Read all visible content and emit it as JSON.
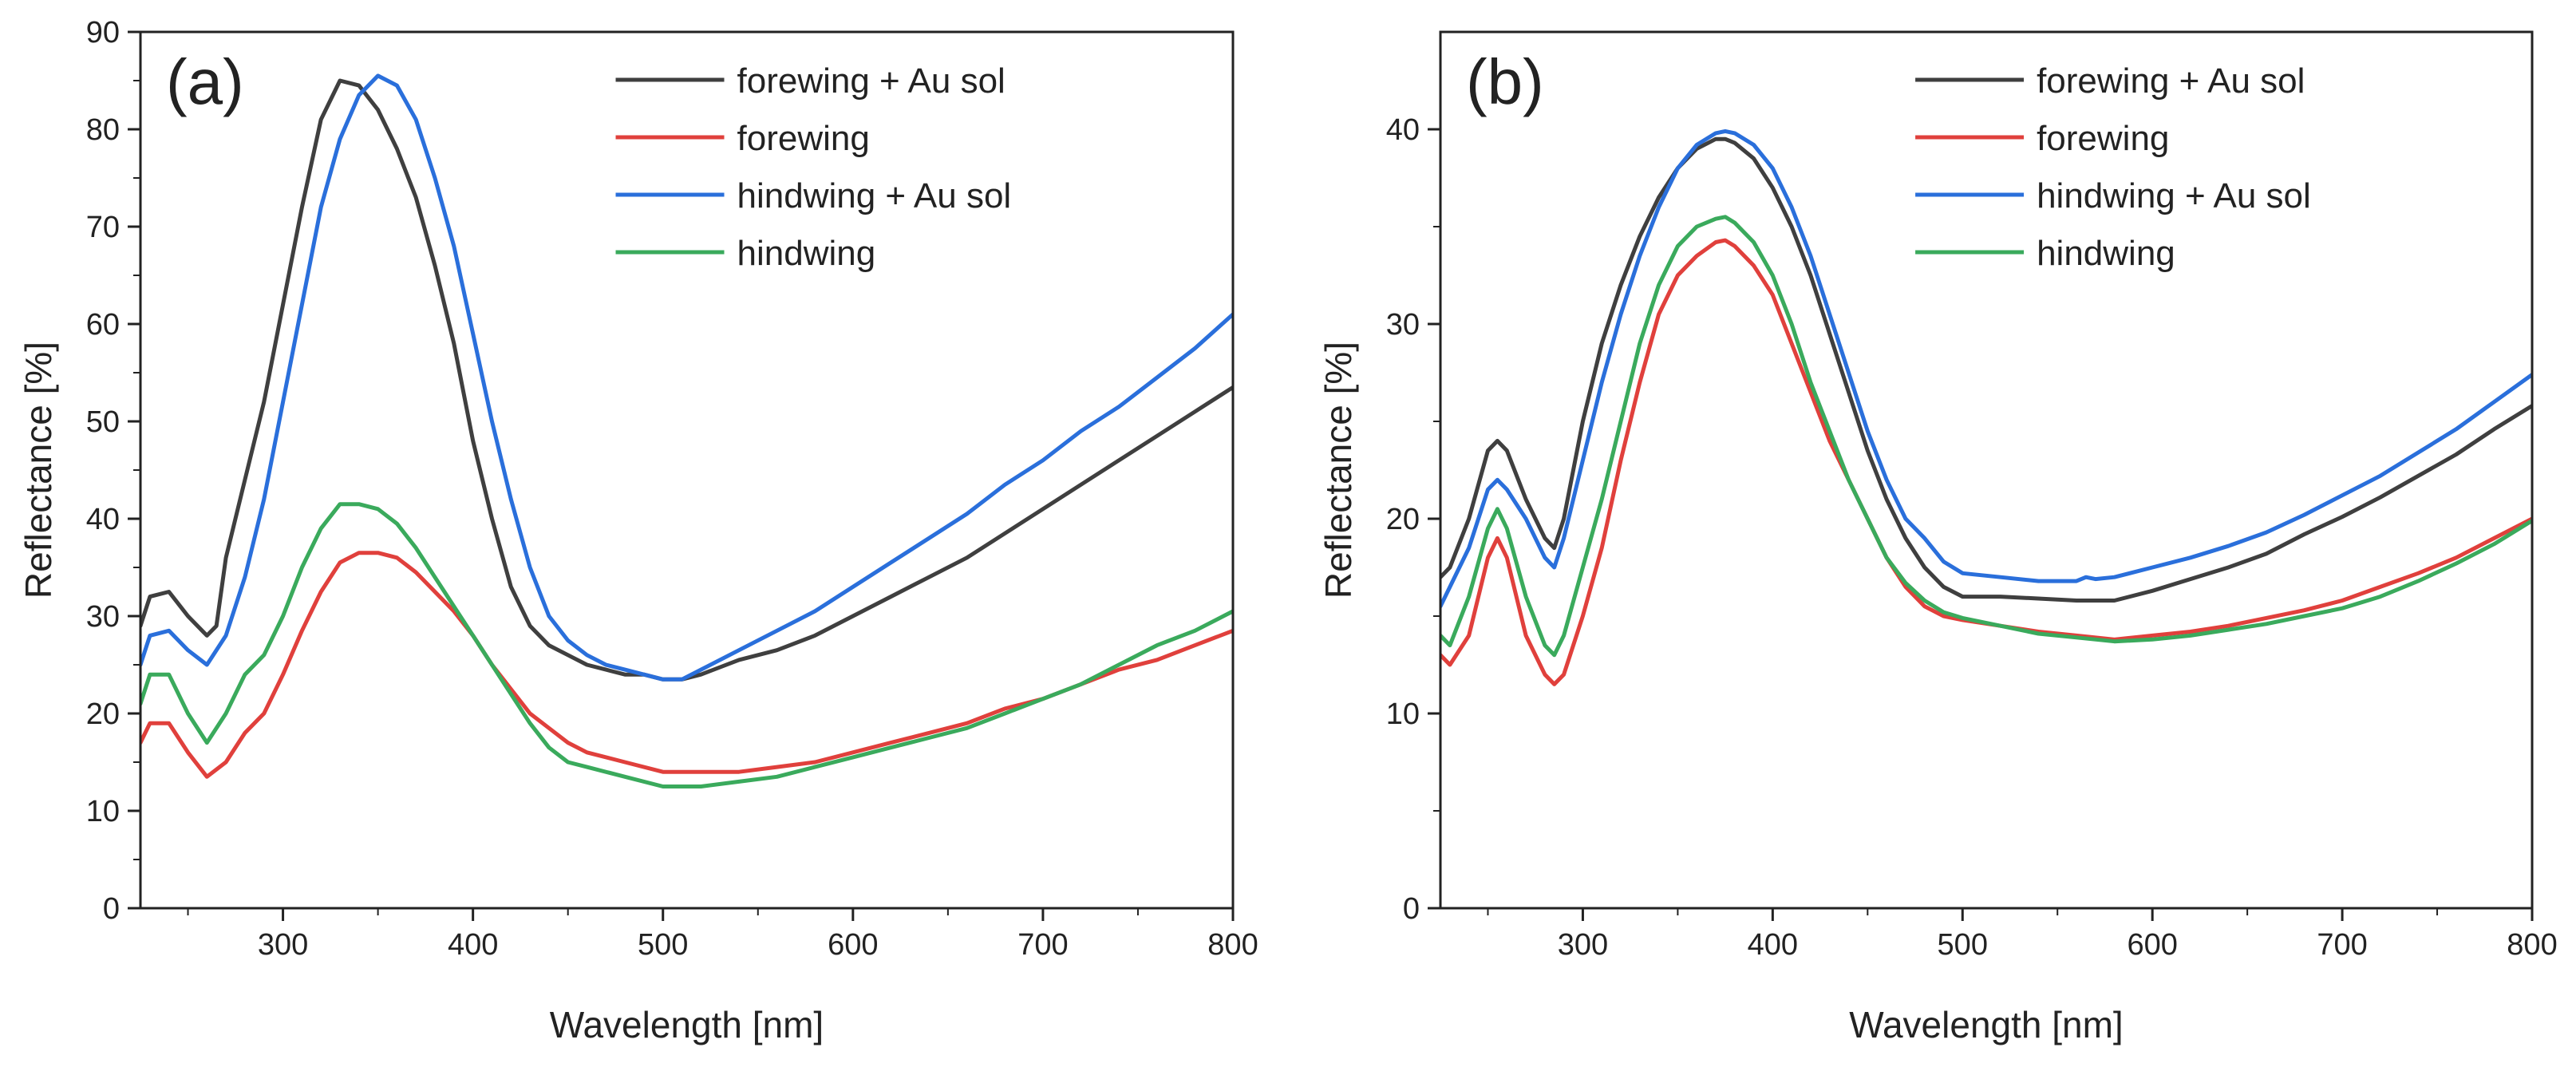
{
  "chart_data": [
    {
      "panel_label": "(a)",
      "type": "line",
      "xlabel": "Wavelength [nm]",
      "ylabel": "Reflectance [%]",
      "xlim": [
        225,
        800
      ],
      "ylim": [
        0,
        90
      ],
      "xticks": [
        300,
        400,
        500,
        600,
        700,
        800
      ],
      "yticks": [
        0,
        10,
        20,
        30,
        40,
        50,
        60,
        70,
        80,
        90
      ],
      "grid": false,
      "legend_position": "top-right",
      "series": [
        {
          "name": "forewing + Au sol",
          "color": "#3f3f3f",
          "x": [
            225,
            230,
            240,
            250,
            260,
            265,
            270,
            280,
            290,
            300,
            310,
            320,
            330,
            340,
            350,
            360,
            370,
            380,
            390,
            400,
            410,
            420,
            430,
            440,
            450,
            460,
            470,
            480,
            490,
            500,
            510,
            520,
            540,
            560,
            580,
            600,
            620,
            640,
            660,
            680,
            700,
            720,
            740,
            760,
            780,
            800
          ],
          "y": [
            29,
            32,
            32.5,
            30,
            28,
            29,
            36,
            44,
            52,
            62,
            72,
            81,
            85,
            84.5,
            82,
            78,
            73,
            66,
            58,
            48,
            40,
            33,
            29,
            27,
            26,
            25,
            24.5,
            24,
            24,
            23.5,
            23.5,
            24,
            25.5,
            26.5,
            28,
            30,
            32,
            34,
            36,
            38.5,
            41,
            43.5,
            46,
            48.5,
            51,
            53.5
          ]
        },
        {
          "name": "forewing",
          "color": "#e0403c",
          "x": [
            225,
            230,
            240,
            250,
            260,
            270,
            280,
            290,
            300,
            310,
            320,
            330,
            340,
            350,
            360,
            370,
            380,
            390,
            400,
            410,
            420,
            430,
            440,
            450,
            460,
            480,
            500,
            520,
            540,
            560,
            580,
            600,
            620,
            640,
            660,
            680,
            700,
            720,
            740,
            760,
            780,
            800
          ],
          "y": [
            17,
            19,
            19,
            16,
            13.5,
            15,
            18,
            20,
            24,
            28.5,
            32.5,
            35.5,
            36.5,
            36.5,
            36,
            34.5,
            32.5,
            30.5,
            28,
            25,
            22.5,
            20,
            18.5,
            17,
            16,
            15,
            14,
            14,
            14,
            14.5,
            15,
            16,
            17,
            18,
            19,
            20.5,
            21.5,
            23,
            24.5,
            25.5,
            27,
            28.5
          ]
        },
        {
          "name": "hindwing + Au sol",
          "color": "#2a6fdb",
          "x": [
            225,
            230,
            240,
            250,
            260,
            270,
            280,
            290,
            300,
            310,
            320,
            330,
            340,
            350,
            360,
            370,
            380,
            390,
            400,
            410,
            420,
            430,
            440,
            450,
            460,
            470,
            480,
            490,
            500,
            510,
            520,
            540,
            560,
            580,
            600,
            620,
            640,
            660,
            680,
            700,
            720,
            740,
            760,
            780,
            800
          ],
          "y": [
            25,
            28,
            28.5,
            26.5,
            25,
            28,
            34,
            42,
            52,
            62,
            72,
            79,
            83.5,
            85.5,
            84.5,
            81,
            75,
            68,
            59,
            50,
            42,
            35,
            30,
            27.5,
            26,
            25,
            24.5,
            24,
            23.5,
            23.5,
            24.5,
            26.5,
            28.5,
            30.5,
            33,
            35.5,
            38,
            40.5,
            43.5,
            46,
            49,
            51.5,
            54.5,
            57.5,
            61
          ]
        },
        {
          "name": "hindwing",
          "color": "#3aaa5c",
          "x": [
            225,
            230,
            240,
            250,
            260,
            270,
            280,
            290,
            300,
            310,
            320,
            330,
            340,
            350,
            360,
            370,
            380,
            390,
            400,
            410,
            420,
            430,
            440,
            450,
            460,
            480,
            500,
            520,
            540,
            560,
            580,
            600,
            620,
            640,
            660,
            680,
            700,
            720,
            740,
            760,
            780,
            800
          ],
          "y": [
            21,
            24,
            24,
            20,
            17,
            20,
            24,
            26,
            30,
            35,
            39,
            41.5,
            41.5,
            41,
            39.5,
            37,
            34,
            31,
            28,
            25,
            22,
            19,
            16.5,
            15,
            14.5,
            13.5,
            12.5,
            12.5,
            13,
            13.5,
            14.5,
            15.5,
            16.5,
            17.5,
            18.5,
            20,
            21.5,
            23,
            25,
            27,
            28.5,
            30.5
          ]
        }
      ]
    },
    {
      "panel_label": "(b)",
      "type": "line",
      "xlabel": "Wavelength [nm]",
      "ylabel": "Reflectance [%]",
      "xlim": [
        225,
        800
      ],
      "ylim": [
        0,
        45
      ],
      "xticks": [
        300,
        400,
        500,
        600,
        700,
        800
      ],
      "yticks": [
        0,
        10,
        20,
        30,
        40
      ],
      "grid": false,
      "legend_position": "top-right",
      "series": [
        {
          "name": "forewing + Au sol",
          "color": "#3f3f3f",
          "x": [
            225,
            230,
            240,
            250,
            255,
            260,
            270,
            280,
            285,
            290,
            300,
            310,
            320,
            330,
            340,
            350,
            360,
            370,
            375,
            380,
            390,
            400,
            410,
            420,
            430,
            440,
            450,
            460,
            470,
            480,
            490,
            500,
            520,
            540,
            560,
            580,
            600,
            620,
            640,
            660,
            680,
            700,
            720,
            740,
            760,
            780,
            800
          ],
          "y": [
            17,
            17.5,
            20,
            23.5,
            24,
            23.5,
            21,
            19,
            18.5,
            20,
            25,
            29,
            32,
            34.5,
            36.5,
            38,
            39,
            39.5,
            39.5,
            39.3,
            38.5,
            37,
            35,
            32.5,
            29.5,
            26.5,
            23.5,
            21,
            19,
            17.5,
            16.5,
            16,
            16,
            15.9,
            15.8,
            15.8,
            16.3,
            16.9,
            17.5,
            18.2,
            19.2,
            20.1,
            21.1,
            22.2,
            23.3,
            24.6,
            25.8
          ]
        },
        {
          "name": "forewing",
          "color": "#e0403c",
          "x": [
            225,
            230,
            240,
            250,
            255,
            260,
            270,
            280,
            285,
            290,
            300,
            310,
            320,
            330,
            340,
            350,
            360,
            370,
            375,
            380,
            390,
            400,
            410,
            420,
            430,
            440,
            450,
            460,
            470,
            480,
            490,
            500,
            520,
            540,
            560,
            580,
            600,
            620,
            640,
            660,
            680,
            700,
            720,
            740,
            760,
            780,
            800
          ],
          "y": [
            13,
            12.5,
            14,
            18,
            19,
            18,
            14,
            12,
            11.5,
            12,
            15,
            18.5,
            23,
            27,
            30.5,
            32.5,
            33.5,
            34.2,
            34.3,
            34,
            33,
            31.5,
            29,
            26.5,
            24,
            22,
            20,
            18,
            16.5,
            15.5,
            15,
            14.8,
            14.5,
            14.2,
            14,
            13.8,
            14,
            14.2,
            14.5,
            14.9,
            15.3,
            15.8,
            16.5,
            17.2,
            18,
            19,
            20
          ]
        },
        {
          "name": "hindwing + Au sol",
          "color": "#2a6fdb",
          "x": [
            225,
            230,
            240,
            250,
            255,
            260,
            270,
            280,
            285,
            290,
            300,
            310,
            320,
            330,
            340,
            350,
            360,
            370,
            375,
            380,
            390,
            400,
            410,
            420,
            430,
            440,
            450,
            460,
            470,
            480,
            490,
            500,
            520,
            540,
            560,
            565,
            570,
            580,
            600,
            620,
            640,
            660,
            680,
            700,
            720,
            740,
            760,
            780,
            800
          ],
          "y": [
            15.5,
            16.5,
            18.5,
            21.5,
            22,
            21.5,
            20,
            18,
            17.5,
            19,
            23,
            27,
            30.5,
            33.5,
            36,
            38,
            39.2,
            39.8,
            39.9,
            39.8,
            39.2,
            38,
            36,
            33.5,
            30.5,
            27.5,
            24.5,
            22,
            20,
            19,
            17.8,
            17.2,
            17,
            16.8,
            16.8,
            17,
            16.9,
            17,
            17.5,
            18,
            18.6,
            19.3,
            20.2,
            21.2,
            22.2,
            23.4,
            24.6,
            26,
            27.4
          ]
        },
        {
          "name": "hindwing",
          "color": "#3aaa5c",
          "x": [
            225,
            230,
            240,
            250,
            255,
            260,
            270,
            280,
            285,
            290,
            300,
            310,
            320,
            330,
            340,
            350,
            360,
            370,
            375,
            380,
            390,
            400,
            410,
            420,
            430,
            440,
            450,
            460,
            470,
            480,
            490,
            500,
            520,
            540,
            560,
            580,
            600,
            620,
            640,
            660,
            680,
            700,
            720,
            740,
            760,
            780,
            800
          ],
          "y": [
            14,
            13.5,
            16,
            19.5,
            20.5,
            19.5,
            16,
            13.5,
            13,
            14,
            17.5,
            21,
            25,
            29,
            32,
            34,
            35,
            35.4,
            35.5,
            35.2,
            34.2,
            32.5,
            30,
            27,
            24.5,
            22,
            20,
            18,
            16.7,
            15.8,
            15.2,
            14.9,
            14.5,
            14.1,
            13.9,
            13.7,
            13.8,
            14,
            14.3,
            14.6,
            15,
            15.4,
            16,
            16.8,
            17.7,
            18.7,
            19.9
          ]
        }
      ]
    }
  ]
}
